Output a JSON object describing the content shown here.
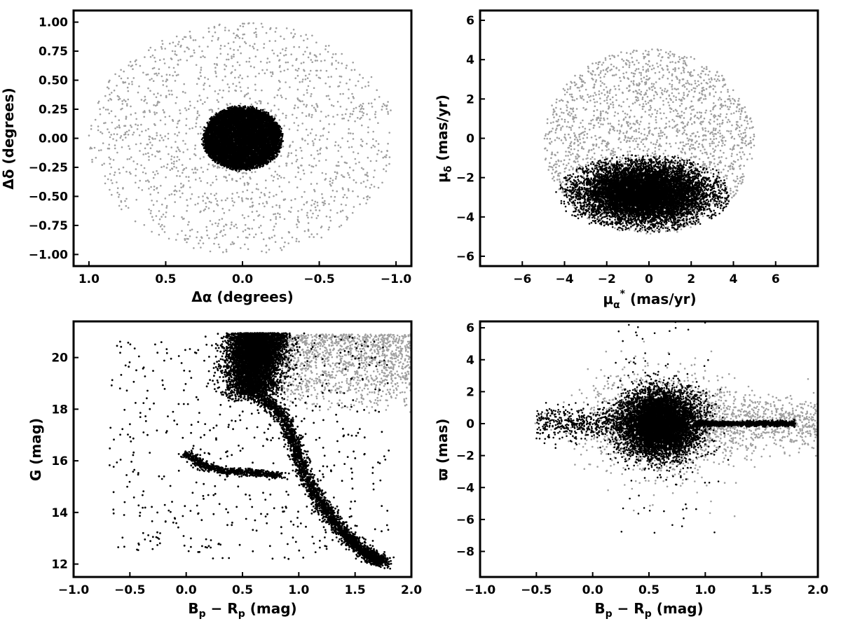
{
  "chart_data": [
    {
      "id": "sky",
      "type": "scatter",
      "xlabel": "Δα (degrees)",
      "ylabel": "Δδ (degrees)",
      "xlim": [
        1.1,
        -1.1
      ],
      "ylim": [
        -1.1,
        1.1
      ],
      "xaxis_inverted": true,
      "xticks": [
        1.0,
        0.5,
        0.0,
        -0.5,
        -1.0
      ],
      "xtick_labels": [
        "1.0",
        "0.5",
        "0.0",
        "−0.5",
        "−1.0"
      ],
      "yticks": [
        1.0,
        0.75,
        0.5,
        0.25,
        0.0,
        -0.25,
        -0.5,
        -0.75,
        -1.0
      ],
      "ytick_labels": [
        "1.00",
        "0.75",
        "0.50",
        "0.25",
        "0.00",
        "−0.25",
        "−0.50",
        "−0.75",
        "−1.00"
      ],
      "grid": false,
      "series": [
        {
          "role": "field",
          "color": "#9e9e9e",
          "shape": "uniform disk",
          "center": [
            0,
            0
          ],
          "radius": 1.0,
          "count": 1600
        },
        {
          "role": "members",
          "color": "#000000",
          "shape": "dense core",
          "center": [
            0,
            0
          ],
          "extent": [
            0.27,
            0.3
          ],
          "count": 9000
        }
      ]
    },
    {
      "id": "pm",
      "type": "scatter",
      "xlabel": "μ*α (mas/yr)",
      "ylabel": "μδ (mas/yr)",
      "xlim": [
        -8,
        8
      ],
      "ylim": [
        -6.5,
        6.5
      ],
      "xticks": [
        -6,
        -4,
        -2,
        0,
        2,
        4,
        6
      ],
      "xtick_labels": [
        "−6",
        "−4",
        "−2",
        "0",
        "2",
        "4",
        "6"
      ],
      "yticks": [
        6,
        4,
        2,
        0,
        -2,
        -4,
        -6
      ],
      "ytick_labels": [
        "6",
        "4",
        "2",
        "0",
        "−2",
        "−4",
        "−6"
      ],
      "grid": false,
      "series": [
        {
          "role": "field",
          "color": "#9e9e9e",
          "shape": "disk",
          "center": [
            0,
            -0.2
          ],
          "radius": 5.0,
          "count": 2200
        },
        {
          "role": "members",
          "color": "#000000",
          "shape": "ellipse",
          "center": [
            -0.2,
            -2.8
          ],
          "extent": [
            4.2,
            2.0
          ],
          "count": 9000
        }
      ]
    },
    {
      "id": "cmd",
      "type": "scatter",
      "xlabel": "Bp − Rp (mag)",
      "ylabel": "G (mag)",
      "xlim": [
        -1.0,
        2.0
      ],
      "ylim": [
        11.5,
        21.4
      ],
      "xticks": [
        -1.0,
        -0.5,
        0.0,
        0.5,
        1.0,
        1.5,
        2.0
      ],
      "xtick_labels": [
        "−1.0",
        "−0.5",
        "0.0",
        "0.5",
        "1.0",
        "1.5",
        "2.0"
      ],
      "yticks": [
        20,
        18,
        16,
        14,
        12
      ],
      "ytick_labels": [
        "20",
        "18",
        "16",
        "14",
        "12"
      ],
      "grid": false,
      "series": [
        {
          "role": "field",
          "color": "#9e9e9e",
          "shape": "faint field",
          "count": 1300
        },
        {
          "role": "members",
          "color": "#000000",
          "shape": "cluster sequence: turnoff, giant branch, horizontal branch",
          "turnoff": [
            0.6,
            19.8
          ],
          "giant_branch": [
            [
              0.55,
              19.0
            ],
            [
              0.7,
              18.3
            ],
            [
              0.85,
              17.8
            ],
            [
              0.95,
              16.8
            ],
            [
              1.05,
              15.5
            ],
            [
              1.2,
              14.3
            ],
            [
              1.4,
              13.2
            ],
            [
              1.6,
              12.4
            ],
            [
              1.75,
              12.1
            ]
          ],
          "horizontal_branch": [
            [
              0.0,
              16.3
            ],
            [
              0.15,
              15.8
            ],
            [
              0.35,
              15.6
            ],
            [
              0.6,
              15.55
            ],
            [
              0.85,
              15.4
            ]
          ],
          "count": 9000
        }
      ]
    },
    {
      "id": "plx",
      "type": "scatter",
      "xlabel": "Bp − Rp (mag)",
      "ylabel": "ϖ (mas)",
      "xlim": [
        -1.0,
        2.0
      ],
      "ylim": [
        -9.6,
        6.4
      ],
      "xticks": [
        -1.0,
        -0.5,
        0.0,
        0.5,
        1.0,
        1.5,
        2.0
      ],
      "xtick_labels": [
        "−1.0",
        "−0.5",
        "0.0",
        "0.5",
        "1.0",
        "1.5",
        "2.0"
      ],
      "yticks": [
        6,
        4,
        2,
        0,
        -2,
        -4,
        -6,
        -8
      ],
      "ytick_labels": [
        "6",
        "4",
        "2",
        "0",
        "−2",
        "−4",
        "−6",
        "−8"
      ],
      "grid": false,
      "series": [
        {
          "role": "field",
          "color": "#9e9e9e",
          "shape": "broad blob",
          "center": [
            0.65,
            0
          ],
          "count": 1500
        },
        {
          "role": "members",
          "color": "#000000",
          "shape": "blob with red tail",
          "center": [
            0.6,
            0
          ],
          "extent": [
            0.35,
            1.3
          ],
          "tail_to": 1.8,
          "count": 9000
        }
      ]
    }
  ]
}
